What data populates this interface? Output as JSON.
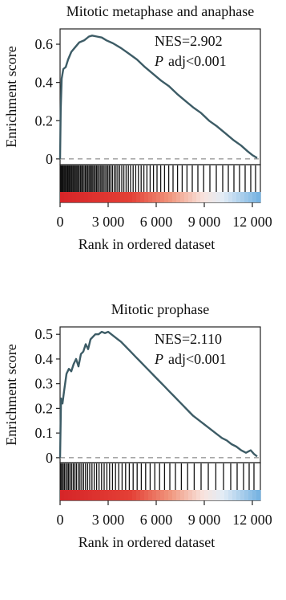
{
  "chart_data": [
    {
      "type": "line",
      "title": "Mitotic metaphase and anaphase",
      "ylabel": "Enrichment score",
      "xlabel": "Rank in ordered dataset",
      "xlim": [
        0,
        12500
      ],
      "ylim": [
        -0.03,
        0.68
      ],
      "xticks": [
        0,
        3000,
        6000,
        9000,
        12000
      ],
      "xtick_labels": [
        "0",
        "3 000",
        "6 000",
        "9 000",
        "12 000"
      ],
      "yticks": [
        0,
        0.2,
        0.4,
        0.6
      ],
      "ytick_labels": [
        "0",
        "0.2",
        "0.4",
        "0.6"
      ],
      "annotations": {
        "nes": "NES=2.902",
        "padj_p": "P",
        "padj_rest": "adj<0.001"
      },
      "series": [
        {
          "x": [
            0,
            40,
            100,
            200,
            350,
            500,
            700,
            900,
            1200,
            1500,
            1800,
            2000,
            2300,
            2600,
            2900,
            3300,
            3800,
            4300,
            4800,
            5300,
            5800,
            6300,
            6800,
            7300,
            7800,
            8300,
            8800,
            9300,
            9800,
            10300,
            10800,
            11300,
            11700,
            12000,
            12300
          ],
          "y": [
            0.0,
            0.26,
            0.42,
            0.47,
            0.48,
            0.52,
            0.56,
            0.58,
            0.61,
            0.62,
            0.64,
            0.645,
            0.64,
            0.635,
            0.62,
            0.605,
            0.58,
            0.55,
            0.52,
            0.48,
            0.445,
            0.41,
            0.38,
            0.34,
            0.305,
            0.27,
            0.24,
            0.2,
            0.17,
            0.135,
            0.1,
            0.07,
            0.04,
            0.02,
            0.005
          ]
        }
      ],
      "hits": [
        30,
        80,
        130,
        180,
        240,
        300,
        350,
        420,
        480,
        540,
        600,
        650,
        720,
        790,
        850,
        920,
        990,
        1060,
        1130,
        1200,
        1280,
        1350,
        1420,
        1500,
        1580,
        1650,
        1730,
        1810,
        1890,
        1960,
        2040,
        2120,
        2200,
        2280,
        2360,
        2450,
        2540,
        2620,
        2710,
        2800,
        2890,
        2980,
        3070,
        3170,
        3270,
        3380,
        3490,
        3600,
        3720,
        3850,
        3980,
        4120,
        4260,
        4400,
        4560,
        4720,
        4890,
        5060,
        5230,
        5420,
        5620,
        5830,
        6050,
        6280,
        6520,
        6780,
        7050,
        7330,
        7620,
        7920,
        8250,
        8600,
        8960,
        9350,
        9750,
        10150,
        10500,
        10850,
        11200,
        11550,
        11900,
        12200
      ]
    },
    {
      "type": "line",
      "title": "Mitotic prophase",
      "ylabel": "Enrichment score",
      "xlabel": "Rank in ordered dataset",
      "xlim": [
        0,
        12500
      ],
      "ylim": [
        -0.02,
        0.53
      ],
      "xticks": [
        0,
        3000,
        6000,
        9000,
        12000
      ],
      "xtick_labels": [
        "0",
        "3 000",
        "6 000",
        "9 000",
        "12 000"
      ],
      "yticks": [
        0,
        0.1,
        0.2,
        0.3,
        0.4,
        0.5
      ],
      "ytick_labels": [
        "0",
        "0.1",
        "0.2",
        "0.3",
        "0.4",
        "0.5"
      ],
      "annotations": {
        "nes": "NES=2.110",
        "padj_p": "P",
        "padj_rest": "adj<0.001"
      },
      "series": [
        {
          "x": [
            0,
            60,
            150,
            250,
            400,
            550,
            700,
            850,
            1000,
            1150,
            1300,
            1450,
            1600,
            1750,
            1900,
            2050,
            2200,
            2400,
            2600,
            2800,
            3000,
            3200,
            3400,
            3600,
            3800,
            4100,
            4400,
            4700,
            5000,
            5300,
            5600,
            5900,
            6200,
            6500,
            6800,
            7100,
            7400,
            7700,
            8000,
            8300,
            8600,
            8900,
            9200,
            9500,
            9800,
            10100,
            10400,
            10700,
            11000,
            11300,
            11600,
            11900,
            12100,
            12300
          ],
          "y": [
            0.0,
            0.24,
            0.22,
            0.27,
            0.34,
            0.36,
            0.35,
            0.38,
            0.4,
            0.37,
            0.42,
            0.43,
            0.46,
            0.44,
            0.48,
            0.49,
            0.5,
            0.5,
            0.51,
            0.505,
            0.51,
            0.5,
            0.49,
            0.48,
            0.47,
            0.45,
            0.43,
            0.41,
            0.39,
            0.37,
            0.35,
            0.33,
            0.31,
            0.29,
            0.27,
            0.25,
            0.23,
            0.21,
            0.19,
            0.17,
            0.155,
            0.14,
            0.125,
            0.11,
            0.095,
            0.08,
            0.07,
            0.055,
            0.045,
            0.03,
            0.02,
            0.03,
            0.015,
            0.005
          ]
        }
      ],
      "hits": [
        40,
        110,
        190,
        270,
        360,
        450,
        530,
        620,
        720,
        820,
        920,
        1020,
        1130,
        1240,
        1350,
        1470,
        1590,
        1720,
        1850,
        1990,
        2130,
        2280,
        2430,
        2590,
        2750,
        2920,
        3090,
        3270,
        3460,
        3660,
        3870,
        4090,
        4320,
        4560,
        4810,
        5070,
        5340,
        5620,
        5910,
        6210,
        6520,
        6850,
        7200,
        7570,
        7960,
        8370,
        8800,
        9250,
        9720,
        10200,
        10650,
        11050,
        11450,
        11800,
        12100
      ]
    }
  ]
}
